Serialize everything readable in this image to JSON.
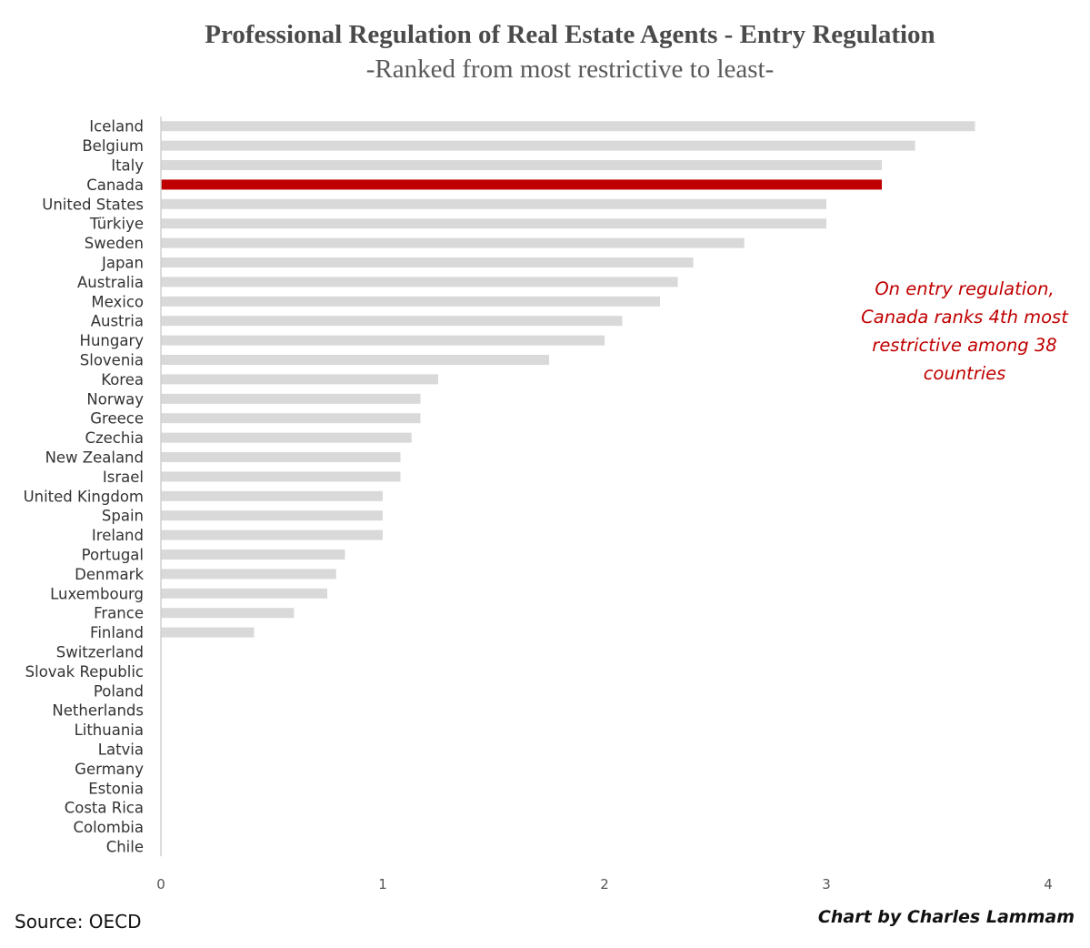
{
  "chart_data": {
    "type": "bar",
    "orientation": "horizontal",
    "title": "Professional Regulation of Real Estate Agents - Entry Regulation",
    "subtitle": "-Ranked from most restrictive to least-",
    "categories": [
      "Iceland",
      "Belgium",
      "Italy",
      "Canada",
      "United States",
      "Türkiye",
      "Sweden",
      "Japan",
      "Australia",
      "Mexico",
      "Austria",
      "Hungary",
      "Slovenia",
      "Korea",
      "Norway",
      "Greece",
      "Czechia",
      "New Zealand",
      "Israel",
      "United Kingdom",
      "Spain",
      "Ireland",
      "Portugal",
      "Denmark",
      "Luxembourg",
      "France",
      "Finland",
      "Switzerland",
      "Slovak Republic",
      "Poland",
      "Netherlands",
      "Lithuania",
      "Latvia",
      "Germany",
      "Estonia",
      "Costa Rica",
      "Colombia",
      "Chile"
    ],
    "values": [
      3.67,
      3.4,
      3.25,
      3.25,
      3.0,
      3.0,
      2.63,
      2.4,
      2.33,
      2.25,
      2.08,
      2.0,
      1.75,
      1.25,
      1.17,
      1.17,
      1.13,
      1.08,
      1.08,
      1.0,
      1.0,
      1.0,
      0.83,
      0.79,
      0.75,
      0.6,
      0.42,
      0,
      0,
      0,
      0,
      0,
      0,
      0,
      0,
      0,
      0,
      0
    ],
    "highlight": "Canada",
    "bar_color": "#d9d9d9",
    "highlight_color": "#c00000",
    "xlim": [
      0,
      4
    ],
    "xticks": [
      0,
      1,
      2,
      3,
      4
    ],
    "grid": false,
    "legend": false
  },
  "annotation": {
    "lines": [
      "On entry regulation,",
      "Canada ranks 4th most",
      "restrictive among 38",
      "countries"
    ],
    "color": "#c00000"
  },
  "footer": {
    "source": "Source: OECD",
    "credit": "Chart by Charles Lammam"
  }
}
